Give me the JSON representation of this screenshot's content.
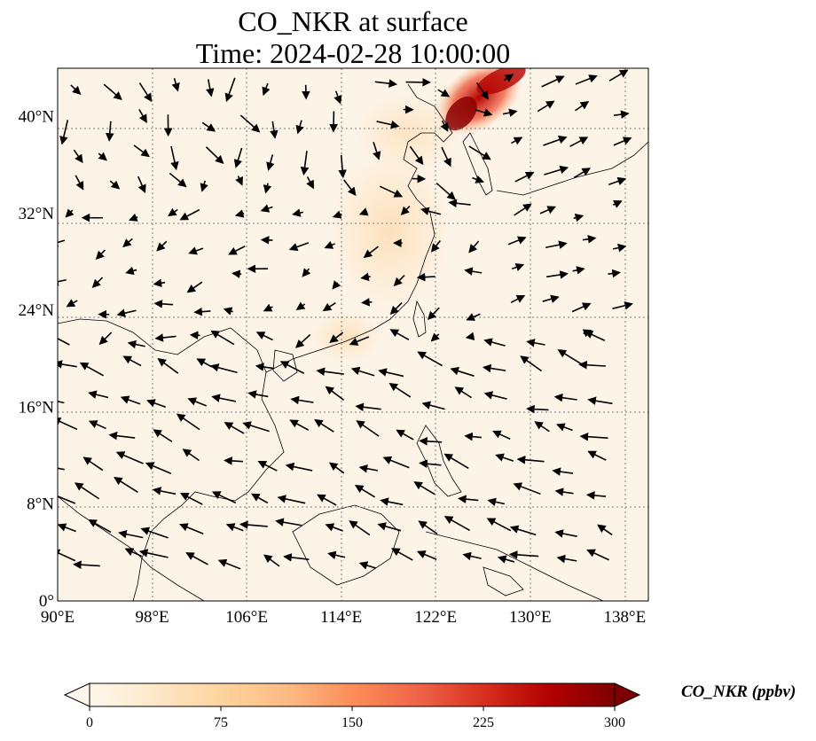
{
  "title": {
    "line1": "CO_NKR at surface",
    "line2": "Time: 2024-02-28 10:00:00"
  },
  "map": {
    "lon_range": [
      90,
      140
    ],
    "lat_range": [
      0,
      44
    ],
    "gridlines": true,
    "lon_ticks": [
      {
        "value": 90,
        "label": "90°E"
      },
      {
        "value": 98,
        "label": "98°E"
      },
      {
        "value": 106,
        "label": "106°E"
      },
      {
        "value": 114,
        "label": "114°E"
      },
      {
        "value": 122,
        "label": "122°E"
      },
      {
        "value": 130,
        "label": "130°E"
      },
      {
        "value": 138,
        "label": "138°E"
      }
    ],
    "lat_ticks": [
      {
        "value": 0,
        "label": "0°"
      },
      {
        "value": 8,
        "label": "8°N"
      },
      {
        "value": 16,
        "label": "16°N"
      },
      {
        "value": 24,
        "label": "24°N"
      },
      {
        "value": 32,
        "label": "32°N"
      },
      {
        "value": 40,
        "label": "40°N"
      }
    ],
    "land_color": "#fdf4e8",
    "coast_color": "#000000"
  },
  "colorbar": {
    "label": "CO_NKR (ppbv)",
    "min": 0,
    "max": 300,
    "colormap": "OrRd",
    "colors": [
      "#fff7ec",
      "#fee8c8",
      "#fdd49e",
      "#fdbb84",
      "#fc8d59",
      "#ef6548",
      "#d7301f",
      "#b30000",
      "#7f0000"
    ],
    "ticks": [
      {
        "value": 0,
        "label": "0"
      },
      {
        "value": 75,
        "label": "75"
      },
      {
        "value": 150,
        "label": "150"
      },
      {
        "value": 225,
        "label": "225"
      },
      {
        "value": 300,
        "label": "300"
      }
    ]
  }
}
